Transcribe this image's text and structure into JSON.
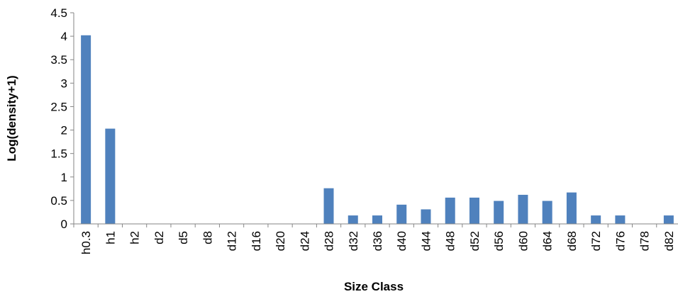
{
  "chart_data": {
    "type": "bar",
    "title": "",
    "xlabel": "Size Class",
    "ylabel": "Log(density+1)",
    "ylim": [
      0,
      4.5
    ],
    "yticks": [
      "0",
      "0.5",
      "1",
      "1.5",
      "2",
      "2.5",
      "3",
      "3.5",
      "4",
      "4.5"
    ],
    "grid": false,
    "legend": "none",
    "bar_color": "#4f81bd",
    "categories": [
      "h0.3",
      "h1",
      "h2",
      "d2",
      "d5",
      "d8",
      "d12",
      "d16",
      "d20",
      "d24",
      "d28",
      "d32",
      "d36",
      "d40",
      "d44",
      "d48",
      "d52",
      "d56",
      "d60",
      "d64",
      "d68",
      "d72",
      "d76",
      "d78",
      "d82"
    ],
    "values": [
      4.02,
      2.03,
      0,
      0,
      0,
      0,
      0,
      0,
      0,
      0,
      0.76,
      0.18,
      0.18,
      0.41,
      0.31,
      0.56,
      0.56,
      0.49,
      0.62,
      0.49,
      0.67,
      0.18,
      0.18,
      0,
      0.18
    ]
  }
}
